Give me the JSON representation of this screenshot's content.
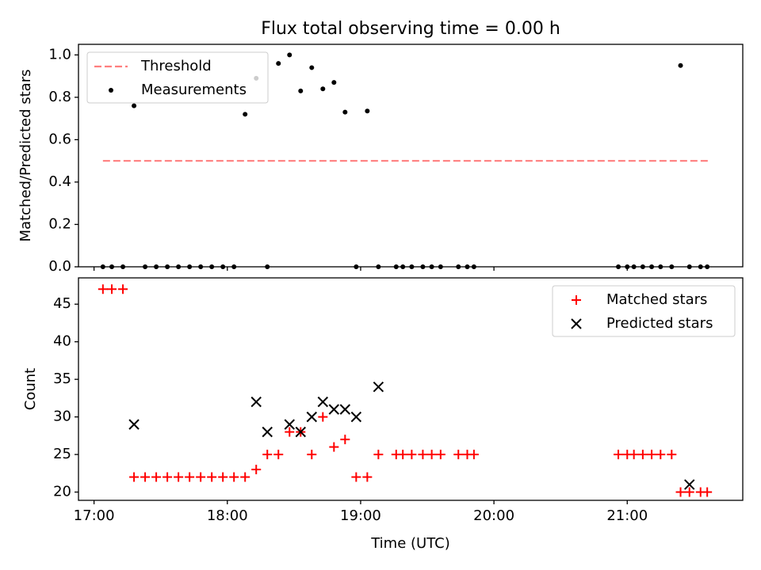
{
  "chart_data": [
    {
      "type": "scatter",
      "title": "Flux total observing time = 0.00 h",
      "xlabel": "",
      "ylabel": "Matched/Predicted stars",
      "xlim": [
        "16:53",
        "21:52"
      ],
      "ylim": [
        0,
        1.05
      ],
      "yticks": [
        0.0,
        0.2,
        0.4,
        0.6,
        0.8,
        1.0
      ],
      "ytick_labels": [
        "0.0",
        "0.2",
        "0.4",
        "0.6",
        "0.8",
        "1.0"
      ],
      "xticks": [
        "17:00",
        "18:00",
        "19:00",
        "20:00",
        "21:00"
      ],
      "grid": false,
      "legend_position": "upper-left",
      "series": [
        {
          "name": "Threshold",
          "kind": "line",
          "style": "dashed",
          "color": "#ff7f7f",
          "x": [
            "17:04",
            "21:37"
          ],
          "y": [
            0.5,
            0.5
          ]
        },
        {
          "name": "Measurements",
          "kind": "scatter",
          "marker": "dot",
          "color": "#000000",
          "x": [
            "17:04",
            "17:08",
            "17:13",
            "17:18",
            "17:23",
            "17:28",
            "17:33",
            "17:38",
            "17:43",
            "17:48",
            "17:53",
            "17:58",
            "18:03",
            "18:08",
            "18:13",
            "18:18",
            "18:23",
            "18:28",
            "18:33",
            "18:38",
            "18:43",
            "18:48",
            "18:53",
            "18:58",
            "19:03",
            "19:08",
            "19:16",
            "19:19",
            "19:23",
            "19:28",
            "19:32",
            "19:36",
            "19:44",
            "19:48",
            "19:51",
            "20:56",
            "21:00",
            "21:03",
            "21:07",
            "21:11",
            "21:15",
            "21:20",
            "21:24",
            "21:28",
            "21:33",
            "21:36"
          ],
          "y": [
            0,
            0,
            0,
            0.76,
            0,
            0,
            0,
            0,
            0,
            0,
            0,
            0,
            0,
            0.72,
            0.89,
            0,
            0.96,
            1.0,
            0.83,
            0.94,
            0.84,
            0.87,
            0.73,
            0,
            0.735,
            0,
            0,
            0,
            0,
            0,
            0,
            0,
            0,
            0,
            0,
            0,
            0,
            0,
            0,
            0,
            0,
            0,
            0.95,
            0,
            0,
            0
          ]
        }
      ]
    },
    {
      "type": "scatter",
      "title": "",
      "xlabel": "Time (UTC)",
      "ylabel": "Count",
      "xlim": [
        "16:53",
        "21:52"
      ],
      "ylim": [
        18.9,
        48.5
      ],
      "yticks": [
        20,
        25,
        30,
        35,
        40,
        45
      ],
      "ytick_labels": [
        "20",
        "25",
        "30",
        "35",
        "40",
        "45"
      ],
      "xticks": [
        "17:00",
        "18:00",
        "19:00",
        "20:00",
        "21:00"
      ],
      "grid": false,
      "legend_position": "upper-right",
      "series": [
        {
          "name": "Matched stars",
          "kind": "scatter",
          "marker": "plus",
          "color": "#ff0000",
          "x": [
            "17:04",
            "17:08",
            "17:13",
            "17:18",
            "17:23",
            "17:28",
            "17:33",
            "17:38",
            "17:43",
            "17:48",
            "17:53",
            "17:58",
            "18:03",
            "18:08",
            "18:13",
            "18:18",
            "18:23",
            "18:28",
            "18:33",
            "18:38",
            "18:43",
            "18:48",
            "18:53",
            "18:58",
            "19:03",
            "19:08",
            "19:16",
            "19:19",
            "19:23",
            "19:28",
            "19:32",
            "19:36",
            "19:44",
            "19:48",
            "19:51",
            "20:56",
            "21:00",
            "21:03",
            "21:07",
            "21:11",
            "21:15",
            "21:20",
            "21:24",
            "21:28",
            "21:33",
            "21:36"
          ],
          "y": [
            47,
            47,
            47,
            22,
            22,
            22,
            22,
            22,
            22,
            22,
            22,
            22,
            22,
            22,
            23,
            25,
            25,
            28,
            28,
            25,
            30,
            26,
            27,
            22,
            22,
            25,
            25,
            25,
            25,
            25,
            25,
            25,
            25,
            25,
            25,
            25,
            25,
            25,
            25,
            25,
            25,
            25,
            20,
            20,
            20,
            20
          ]
        },
        {
          "name": "Predicted stars",
          "kind": "scatter",
          "marker": "x",
          "color": "#000000",
          "x": [
            "17:18",
            "18:13",
            "18:18",
            "18:28",
            "18:33",
            "18:38",
            "18:43",
            "18:48",
            "18:53",
            "18:58",
            "19:08",
            "21:28"
          ],
          "y": [
            29,
            32,
            28,
            29,
            28,
            30,
            32,
            31,
            31,
            30,
            34,
            21
          ]
        }
      ]
    }
  ]
}
